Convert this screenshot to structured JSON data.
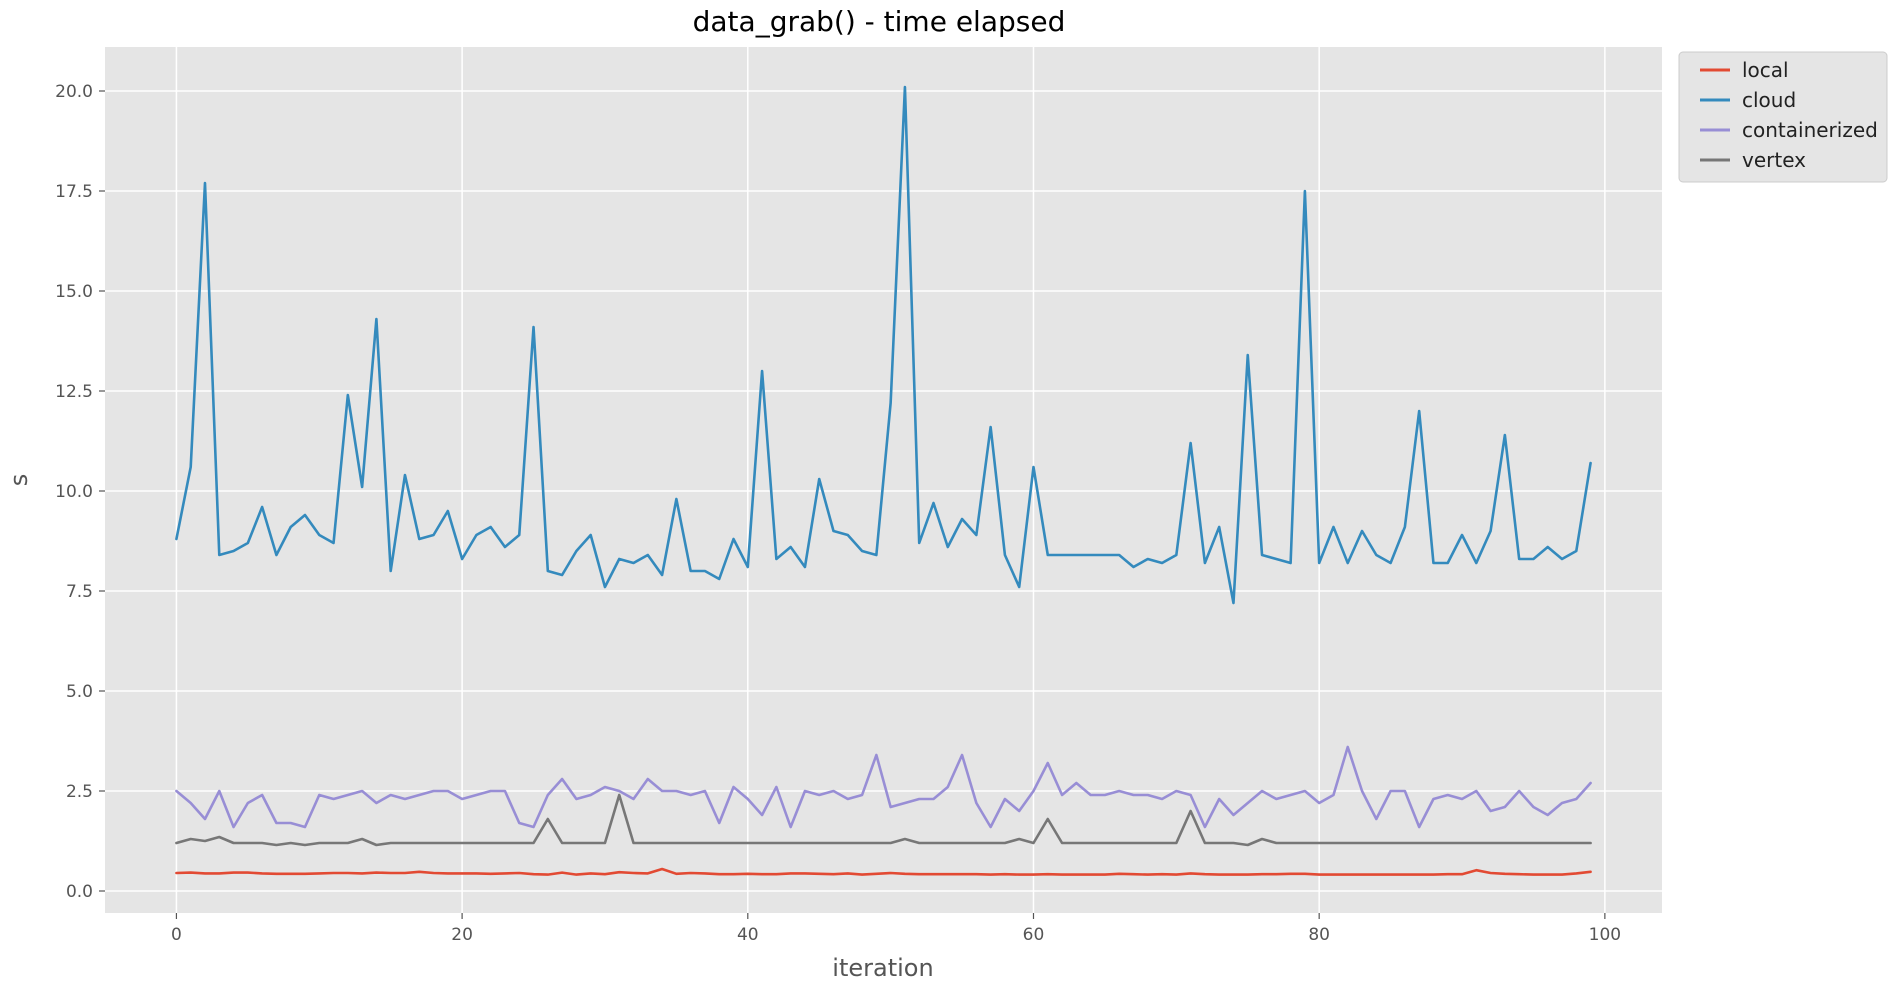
{
  "chart_data": {
    "type": "line",
    "title": "data_grab() - time elapsed",
    "xlabel": "iteration",
    "ylabel": "s",
    "xlim": [
      -5,
      104
    ],
    "ylim": [
      -0.55,
      21.1
    ],
    "xticks": [
      0,
      20,
      40,
      60,
      80,
      100
    ],
    "xtick_labels": [
      "0",
      "20",
      "40",
      "60",
      "80",
      "100"
    ],
    "yticks": [
      0,
      2.5,
      5,
      7.5,
      10,
      12.5,
      15,
      17.5,
      20
    ],
    "ytick_labels": [
      "0.0",
      "2.5",
      "5.0",
      "7.5",
      "10.0",
      "12.5",
      "15.0",
      "17.5",
      "20.0"
    ],
    "grid": true,
    "legend_position": "outside-top-right",
    "style": {
      "plot_background": "#e5e5e5",
      "grid_color": "#ffffff"
    },
    "x": [
      0,
      1,
      2,
      3,
      4,
      5,
      6,
      7,
      8,
      9,
      10,
      11,
      12,
      13,
      14,
      15,
      16,
      17,
      18,
      19,
      20,
      21,
      22,
      23,
      24,
      25,
      26,
      27,
      28,
      29,
      30,
      31,
      32,
      33,
      34,
      35,
      36,
      37,
      38,
      39,
      40,
      41,
      42,
      43,
      44,
      45,
      46,
      47,
      48,
      49,
      50,
      51,
      52,
      53,
      54,
      55,
      56,
      57,
      58,
      59,
      60,
      61,
      62,
      63,
      64,
      65,
      66,
      67,
      68,
      69,
      70,
      71,
      72,
      73,
      74,
      75,
      76,
      77,
      78,
      79,
      80,
      81,
      82,
      83,
      84,
      85,
      86,
      87,
      88,
      89,
      90,
      91,
      92,
      93,
      94,
      95,
      96,
      97,
      98,
      99
    ],
    "series": [
      {
        "name": "local",
        "color": "#e24a33",
        "values": [
          0.45,
          0.46,
          0.44,
          0.44,
          0.46,
          0.46,
          0.44,
          0.43,
          0.43,
          0.43,
          0.44,
          0.45,
          0.45,
          0.44,
          0.46,
          0.45,
          0.45,
          0.48,
          0.45,
          0.44,
          0.44,
          0.44,
          0.43,
          0.44,
          0.45,
          0.42,
          0.41,
          0.46,
          0.41,
          0.44,
          0.42,
          0.47,
          0.45,
          0.44,
          0.55,
          0.43,
          0.45,
          0.44,
          0.42,
          0.42,
          0.43,
          0.42,
          0.42,
          0.44,
          0.44,
          0.43,
          0.42,
          0.44,
          0.41,
          0.43,
          0.45,
          0.43,
          0.42,
          0.42,
          0.42,
          0.42,
          0.42,
          0.41,
          0.42,
          0.41,
          0.41,
          0.42,
          0.41,
          0.41,
          0.41,
          0.41,
          0.43,
          0.42,
          0.41,
          0.42,
          0.41,
          0.44,
          0.42,
          0.41,
          0.41,
          0.41,
          0.42,
          0.42,
          0.43,
          0.43,
          0.41,
          0.41,
          0.41,
          0.41,
          0.41,
          0.41,
          0.41,
          0.41,
          0.41,
          0.42,
          0.42,
          0.52,
          0.45,
          0.43,
          0.42,
          0.41,
          0.41,
          0.41,
          0.44,
          0.48
        ]
      },
      {
        "name": "cloud",
        "color": "#348abd",
        "values": [
          8.8,
          10.6,
          17.7,
          8.4,
          8.5,
          8.7,
          9.6,
          8.4,
          9.1,
          9.4,
          8.9,
          8.7,
          12.4,
          10.1,
          14.3,
          8.0,
          10.4,
          8.8,
          8.9,
          9.5,
          8.3,
          8.9,
          9.1,
          8.6,
          8.9,
          14.1,
          8.0,
          7.9,
          8.5,
          8.9,
          7.6,
          8.3,
          8.2,
          8.4,
          7.9,
          9.8,
          8.0,
          8.0,
          7.8,
          8.8,
          8.1,
          13.0,
          8.3,
          8.6,
          8.1,
          10.3,
          9.0,
          8.9,
          8.5,
          8.4,
          12.2,
          20.1,
          8.7,
          9.7,
          8.6,
          9.3,
          8.9,
          11.6,
          8.4,
          7.6,
          10.6,
          8.4,
          8.4,
          8.4,
          8.4,
          8.4,
          8.4,
          8.1,
          8.3,
          8.2,
          8.4,
          11.2,
          8.2,
          9.1,
          7.2,
          13.4,
          8.4,
          8.3,
          8.2,
          17.5,
          8.2,
          9.1,
          8.2,
          9.0,
          8.4,
          8.2,
          9.1,
          12.0,
          8.2,
          8.2,
          8.9,
          8.2,
          9.0,
          11.4,
          8.3,
          8.3,
          8.6,
          8.3,
          8.5,
          10.7
        ]
      },
      {
        "name": "containerized",
        "color": "#988ed5",
        "values": [
          2.5,
          2.2,
          1.8,
          2.5,
          1.6,
          2.2,
          2.4,
          1.7,
          1.7,
          1.6,
          2.4,
          2.3,
          2.4,
          2.5,
          2.2,
          2.4,
          2.3,
          2.4,
          2.5,
          2.5,
          2.3,
          2.4,
          2.5,
          2.5,
          1.7,
          1.6,
          2.4,
          2.8,
          2.3,
          2.4,
          2.6,
          2.5,
          2.3,
          2.8,
          2.5,
          2.5,
          2.4,
          2.5,
          1.7,
          2.6,
          2.3,
          1.9,
          2.6,
          1.6,
          2.5,
          2.4,
          2.5,
          2.3,
          2.4,
          3.4,
          2.1,
          2.2,
          2.3,
          2.3,
          2.6,
          3.4,
          2.2,
          1.6,
          2.3,
          2.0,
          2.5,
          3.2,
          2.4,
          2.7,
          2.4,
          2.4,
          2.5,
          2.4,
          2.4,
          2.3,
          2.5,
          2.4,
          1.6,
          2.3,
          1.9,
          2.2,
          2.5,
          2.3,
          2.4,
          2.5,
          2.2,
          2.4,
          3.6,
          2.5,
          1.8,
          2.5,
          2.5,
          1.6,
          2.3,
          2.4,
          2.3,
          2.5,
          2.0,
          2.1,
          2.5,
          2.1,
          1.9,
          2.2,
          2.3,
          2.7
        ]
      },
      {
        "name": "vertex",
        "color": "#777777",
        "values": [
          1.2,
          1.3,
          1.25,
          1.35,
          1.2,
          1.2,
          1.2,
          1.15,
          1.2,
          1.15,
          1.2,
          1.2,
          1.2,
          1.3,
          1.15,
          1.2,
          1.2,
          1.2,
          1.2,
          1.2,
          1.2,
          1.2,
          1.2,
          1.2,
          1.2,
          1.2,
          1.8,
          1.2,
          1.2,
          1.2,
          1.2,
          2.4,
          1.2,
          1.2,
          1.2,
          1.2,
          1.2,
          1.2,
          1.2,
          1.2,
          1.2,
          1.2,
          1.2,
          1.2,
          1.2,
          1.2,
          1.2,
          1.2,
          1.2,
          1.2,
          1.2,
          1.3,
          1.2,
          1.2,
          1.2,
          1.2,
          1.2,
          1.2,
          1.2,
          1.3,
          1.2,
          1.8,
          1.2,
          1.2,
          1.2,
          1.2,
          1.2,
          1.2,
          1.2,
          1.2,
          1.2,
          2.0,
          1.2,
          1.2,
          1.2,
          1.15,
          1.3,
          1.2,
          1.2,
          1.2,
          1.2,
          1.2,
          1.2,
          1.2,
          1.2,
          1.2,
          1.2,
          1.2,
          1.2,
          1.2,
          1.2,
          1.2,
          1.2,
          1.2,
          1.2,
          1.2,
          1.2,
          1.2,
          1.2,
          1.2
        ]
      }
    ]
  }
}
